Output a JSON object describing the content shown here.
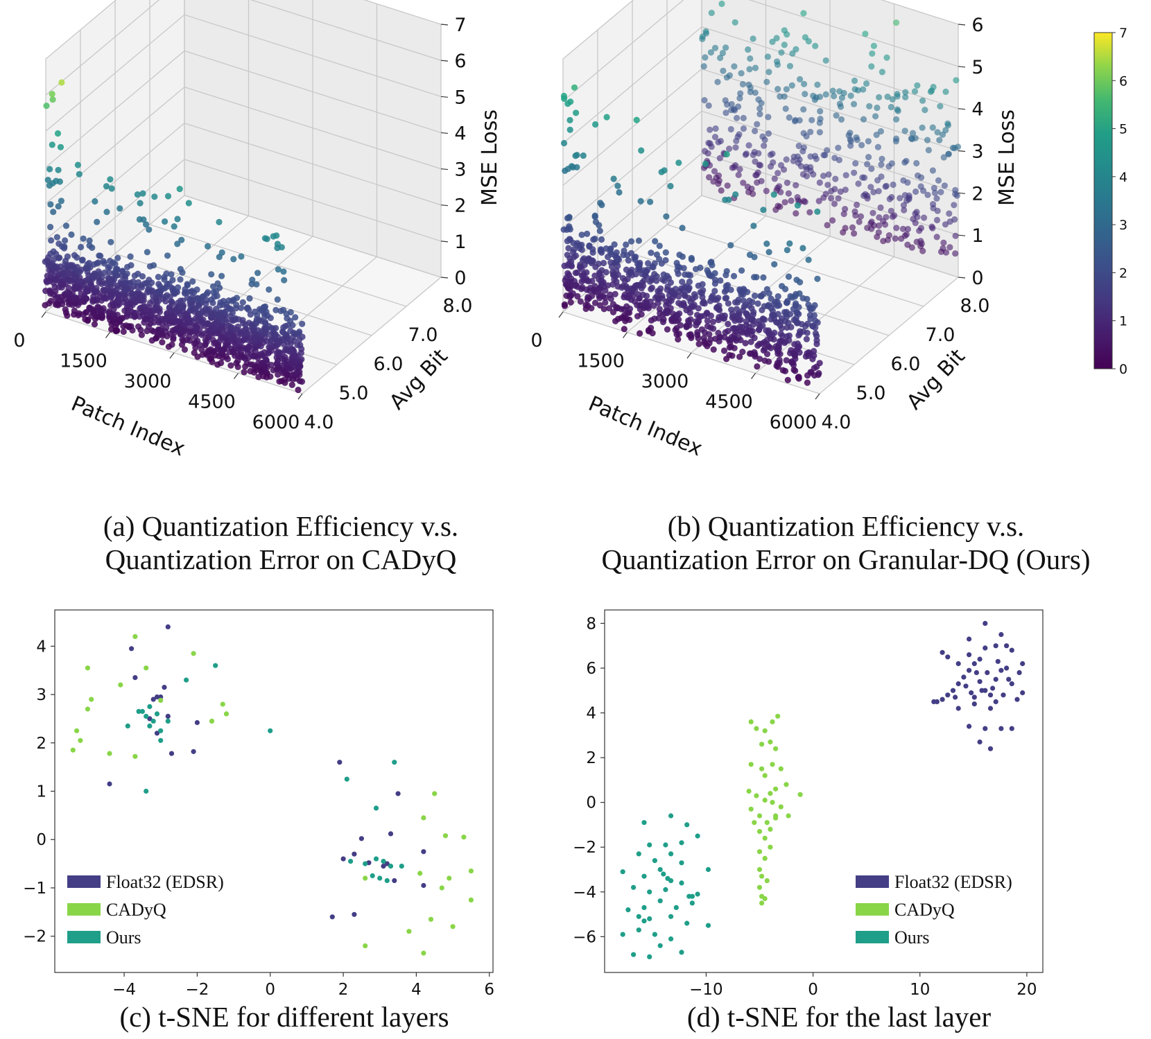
{
  "colors": {
    "float32": "#433e85",
    "cadyq": "#89d548",
    "ours": "#1f9e89",
    "axis": "#333333",
    "grid": "#c8c8c8"
  },
  "captions": {
    "a_line1": "(a) Quantization Efficiency v.s.",
    "a_line2": "Quantization Error on CADyQ",
    "b_line1": "(b) Quantization Efficiency v.s.",
    "b_line2": "Quantization Error on Granular-DQ (Ours)",
    "c": "(c) t-SNE for different layers",
    "d": "(d) t-SNE for the last layer"
  },
  "chart_data": [
    {
      "id": "a",
      "type": "scatter3d",
      "xlabel": "Patch Index",
      "ylabel": "Avg Bit",
      "zlabel": "MSE Loss",
      "xticks": [
        "0",
        "1500",
        "3000",
        "4500",
        "6000"
      ],
      "yticks": [
        "4.0",
        "5.0",
        "6.0",
        "7.0",
        "8.0"
      ],
      "zticks": [
        "0",
        "1",
        "2",
        "3",
        "4",
        "5",
        "6",
        "7"
      ],
      "xlim": [
        0,
        6000
      ],
      "ylim": [
        4,
        8
      ],
      "zlim": [
        0,
        7
      ],
      "bit_levels": [
        4.0
      ],
      "mse_typical_max": 2.6,
      "colorscale": "viridis"
    },
    {
      "id": "b",
      "type": "scatter3d",
      "xlabel": "Patch Index",
      "ylabel": "Avg Bit",
      "zlabel": "MSE Loss",
      "xticks": [
        "0",
        "1500",
        "3000",
        "4500",
        "6000"
      ],
      "yticks": [
        "4.0",
        "5.0",
        "6.0",
        "7.0",
        "8.0"
      ],
      "zticks": [
        "0",
        "1",
        "2",
        "3",
        "4",
        "5",
        "6"
      ],
      "xlim": [
        0,
        6000
      ],
      "ylim": [
        4,
        8
      ],
      "zlim": [
        0,
        6
      ],
      "bit_levels": [
        4.0,
        8.0
      ],
      "mse_typical_max": 2.8,
      "colorscale": "viridis",
      "colorbar": {
        "min": 0,
        "max": 7,
        "ticks": [
          "0",
          "1",
          "2",
          "3",
          "4",
          "5",
          "6",
          "7"
        ]
      }
    },
    {
      "id": "c",
      "type": "scatter",
      "xlim": [
        -5.9,
        6.1
      ],
      "ylim": [
        -2.75,
        4.75
      ],
      "xticks": [
        -4,
        -2,
        0,
        2,
        4,
        6
      ],
      "yticks": [
        -2,
        -1,
        0,
        1,
        2,
        3,
        4
      ],
      "legend_position": "bottom-left",
      "series": [
        {
          "key": "float32",
          "name": "Float32 (EDSR)",
          "points": [
            [
              -2.8,
              4.4
            ],
            [
              -3.8,
              3.95
            ],
            [
              -3.7,
              3.35
            ],
            [
              -3.1,
              2.95
            ],
            [
              -2.9,
              3.15
            ],
            [
              -3.0,
              2.95
            ],
            [
              -2.8,
              2.55
            ],
            [
              -3.1,
              2.2
            ],
            [
              -2.7,
              1.78
            ],
            [
              -2.1,
              1.82
            ],
            [
              -2.0,
              2.42
            ],
            [
              -4.4,
              1.15
            ],
            [
              -3.3,
              2.5
            ],
            [
              -3.2,
              2.9
            ],
            [
              1.9,
              1.6
            ],
            [
              2.5,
              0.02
            ],
            [
              2.3,
              -0.3
            ],
            [
              3.3,
              0.12
            ],
            [
              3.5,
              0.95
            ],
            [
              3.1,
              -0.55
            ],
            [
              3.4,
              -0.85
            ],
            [
              3.2,
              -0.5
            ],
            [
              2.0,
              -0.4
            ],
            [
              1.7,
              -1.6
            ],
            [
              2.3,
              -1.55
            ],
            [
              4.2,
              -0.25
            ],
            [
              4.2,
              -0.95
            ],
            [
              2.7,
              -0.48
            ]
          ]
        },
        {
          "key": "cadyq",
          "name": "CADyQ",
          "points": [
            [
              -3.7,
              4.2
            ],
            [
              -5.0,
              3.55
            ],
            [
              -4.9,
              2.9
            ],
            [
              -5.0,
              2.7
            ],
            [
              -5.3,
              2.25
            ],
            [
              -5.2,
              2.05
            ],
            [
              -5.4,
              1.85
            ],
            [
              -4.4,
              1.78
            ],
            [
              -3.7,
              1.72
            ],
            [
              -4.1,
              3.2
            ],
            [
              -3.4,
              3.55
            ],
            [
              -2.1,
              3.85
            ],
            [
              -1.3,
              2.8
            ],
            [
              -1.2,
              2.6
            ],
            [
              -1.6,
              2.45
            ],
            [
              -3.0,
              2.88
            ],
            [
              4.5,
              0.95
            ],
            [
              4.2,
              0.45
            ],
            [
              4.8,
              0.08
            ],
            [
              5.3,
              0.05
            ],
            [
              5.5,
              -0.65
            ],
            [
              4.9,
              -0.8
            ],
            [
              4.7,
              -1.0
            ],
            [
              4.4,
              -1.65
            ],
            [
              5.0,
              -1.8
            ],
            [
              5.5,
              -1.25
            ],
            [
              4.2,
              -2.35
            ],
            [
              3.8,
              -1.9
            ],
            [
              2.6,
              -2.2
            ],
            [
              2.6,
              -0.8
            ],
            [
              4.1,
              -0.7
            ]
          ]
        },
        {
          "key": "ours",
          "name": "Ours",
          "points": [
            [
              -3.5,
              2.65
            ],
            [
              -3.4,
              2.55
            ],
            [
              -3.2,
              2.45
            ],
            [
              -3.3,
              2.75
            ],
            [
              -3.0,
              2.25
            ],
            [
              -3.3,
              2.35
            ],
            [
              -3.1,
              2.6
            ],
            [
              -3.0,
              2.05
            ],
            [
              -2.8,
              2.45
            ],
            [
              -3.6,
              2.65
            ],
            [
              -3.9,
              2.35
            ],
            [
              -3.4,
              1.0
            ],
            [
              -1.5,
              3.6
            ],
            [
              -2.3,
              3.3
            ],
            [
              0.0,
              2.25
            ],
            [
              2.1,
              1.25
            ],
            [
              2.9,
              0.65
            ],
            [
              3.4,
              1.6
            ],
            [
              2.2,
              -0.45
            ],
            [
              2.8,
              -0.75
            ],
            [
              2.9,
              -0.4
            ],
            [
              3.0,
              -0.8
            ],
            [
              3.2,
              -0.85
            ],
            [
              3.3,
              -0.55
            ],
            [
              3.6,
              -0.55
            ],
            [
              3.1,
              -0.45
            ],
            [
              2.6,
              -0.5
            ]
          ]
        }
      ]
    },
    {
      "id": "d",
      "type": "scatter",
      "xlim": [
        -19.5,
        21.5
      ],
      "ylim": [
        -7.6,
        8.6
      ],
      "xticks": [
        -10,
        0,
        10,
        20
      ],
      "yticks": [
        -6,
        -4,
        -2,
        0,
        2,
        4,
        6,
        8
      ],
      "legend_position": "bottom-right",
      "series": [
        {
          "key": "float32",
          "name": "Float32 (EDSR)",
          "points": [
            [
              11.3,
              4.5
            ],
            [
              11.6,
              4.5
            ],
            [
              12.1,
              4.6
            ],
            [
              12.6,
              4.8
            ],
            [
              13.1,
              5.0
            ],
            [
              13.6,
              5.3
            ],
            [
              14.1,
              5.6
            ],
            [
              14.6,
              5.9
            ],
            [
              15.1,
              6.2
            ],
            [
              15.6,
              5.4
            ],
            [
              16.1,
              5.0
            ],
            [
              16.6,
              4.8
            ],
            [
              17.1,
              5.5
            ],
            [
              17.6,
              5.9
            ],
            [
              18.1,
              6.0
            ],
            [
              18.6,
              5.3
            ],
            [
              19.1,
              4.6
            ],
            [
              19.6,
              4.9
            ],
            [
              12.6,
              6.5
            ],
            [
              13.6,
              6.2
            ],
            [
              14.6,
              6.6
            ],
            [
              15.6,
              6.4
            ],
            [
              16.1,
              6.9
            ],
            [
              17.1,
              7.0
            ],
            [
              18.1,
              7.0
            ],
            [
              18.6,
              6.8
            ],
            [
              16.1,
              8.0
            ],
            [
              17.6,
              7.5
            ],
            [
              14.6,
              7.3
            ],
            [
              12.1,
              6.7
            ],
            [
              15.1,
              4.7
            ],
            [
              16.6,
              4.2
            ],
            [
              17.1,
              4.5
            ],
            [
              13.6,
              4.2
            ],
            [
              14.6,
              3.4
            ],
            [
              15.6,
              2.7
            ],
            [
              16.6,
              2.4
            ],
            [
              17.6,
              3.3
            ],
            [
              16.1,
              3.3
            ],
            [
              18.6,
              3.3
            ],
            [
              15.1,
              4.4
            ],
            [
              19.3,
              5.8
            ],
            [
              18.3,
              5.5
            ],
            [
              17.3,
              6.3
            ],
            [
              16.3,
              5.8
            ],
            [
              15.3,
              5.8
            ],
            [
              14.3,
              5.2
            ],
            [
              13.3,
              4.7
            ],
            [
              19.6,
              6.2
            ],
            [
              17.8,
              4.8
            ],
            [
              16.8,
              5.1
            ],
            [
              15.8,
              5.0
            ],
            [
              14.8,
              4.9
            ]
          ]
        },
        {
          "key": "cadyq",
          "name": "CADyQ",
          "points": [
            [
              -5.8,
              3.6
            ],
            [
              -5.3,
              3.3
            ],
            [
              -4.5,
              3.2
            ],
            [
              -3.8,
              3.6
            ],
            [
              -3.3,
              3.85
            ],
            [
              -4.8,
              2.6
            ],
            [
              -4.0,
              2.7
            ],
            [
              -3.5,
              2.4
            ],
            [
              -5.8,
              1.7
            ],
            [
              -4.8,
              1.5
            ],
            [
              -3.8,
              1.7
            ],
            [
              -3.0,
              1.5
            ],
            [
              -4.5,
              1.2
            ],
            [
              -2.5,
              0.8
            ],
            [
              -3.5,
              0.6
            ],
            [
              -6.0,
              0.5
            ],
            [
              -5.3,
              0.3
            ],
            [
              -4.5,
              0.1
            ],
            [
              -3.8,
              0.0
            ],
            [
              -3.0,
              -0.2
            ],
            [
              -1.2,
              0.35
            ],
            [
              -5.8,
              -0.3
            ],
            [
              -5.0,
              -0.6
            ],
            [
              -4.3,
              -0.9
            ],
            [
              -3.5,
              -0.7
            ],
            [
              -2.3,
              -0.6
            ],
            [
              -5.0,
              -1.3
            ],
            [
              -4.5,
              -1.6
            ],
            [
              -4.0,
              -1.2
            ],
            [
              -5.0,
              -2.2
            ],
            [
              -4.5,
              -2.5
            ],
            [
              -4.0,
              -2.0
            ],
            [
              -5.0,
              -3.0
            ],
            [
              -4.8,
              -3.3
            ],
            [
              -4.3,
              -3.5
            ],
            [
              -5.0,
              -3.8
            ],
            [
              -4.8,
              -4.2
            ],
            [
              -4.8,
              -4.5
            ],
            [
              -4.5,
              -4.3
            ],
            [
              -3.5,
              -0.6
            ],
            [
              -5.5,
              -0.9
            ],
            [
              -4.0,
              0.4
            ]
          ]
        },
        {
          "key": "ours",
          "name": "Ours",
          "points": [
            [
              -15.8,
              -0.9
            ],
            [
              -13.3,
              -0.6
            ],
            [
              -11.8,
              -1.0
            ],
            [
              -15.3,
              -1.9
            ],
            [
              -13.8,
              -1.9
            ],
            [
              -12.3,
              -1.8
            ],
            [
              -10.8,
              -1.5
            ],
            [
              -16.3,
              -2.3
            ],
            [
              -14.8,
              -2.6
            ],
            [
              -13.3,
              -2.3
            ],
            [
              -12.3,
              -2.7
            ],
            [
              -17.8,
              -3.1
            ],
            [
              -15.8,
              -3.3
            ],
            [
              -14.3,
              -3.0
            ],
            [
              -13.3,
              -3.5
            ],
            [
              -9.8,
              -3.0
            ],
            [
              -16.8,
              -3.8
            ],
            [
              -15.3,
              -4.0
            ],
            [
              -13.8,
              -3.9
            ],
            [
              -12.3,
              -3.6
            ],
            [
              -11.3,
              -4.2
            ],
            [
              -10.8,
              -4.1
            ],
            [
              -17.3,
              -4.8
            ],
            [
              -15.8,
              -4.7
            ],
            [
              -14.3,
              -4.4
            ],
            [
              -12.8,
              -4.7
            ],
            [
              -11.3,
              -4.5
            ],
            [
              -16.3,
              -5.1
            ],
            [
              -15.3,
              -5.2
            ],
            [
              -13.3,
              -5.1
            ],
            [
              -11.8,
              -5.4
            ],
            [
              -9.8,
              -5.5
            ],
            [
              -17.8,
              -5.9
            ],
            [
              -16.3,
              -5.7
            ],
            [
              -14.8,
              -5.9
            ],
            [
              -13.3,
              -6.1
            ],
            [
              -16.8,
              -6.8
            ],
            [
              -15.3,
              -6.9
            ],
            [
              -12.3,
              -6.7
            ],
            [
              -14.3,
              -6.4
            ],
            [
              -15.8,
              -5.3
            ],
            [
              -14.0,
              -3.2
            ],
            [
              -13.6,
              -3.4
            ],
            [
              -11.6,
              -4.2
            ]
          ]
        }
      ]
    }
  ]
}
